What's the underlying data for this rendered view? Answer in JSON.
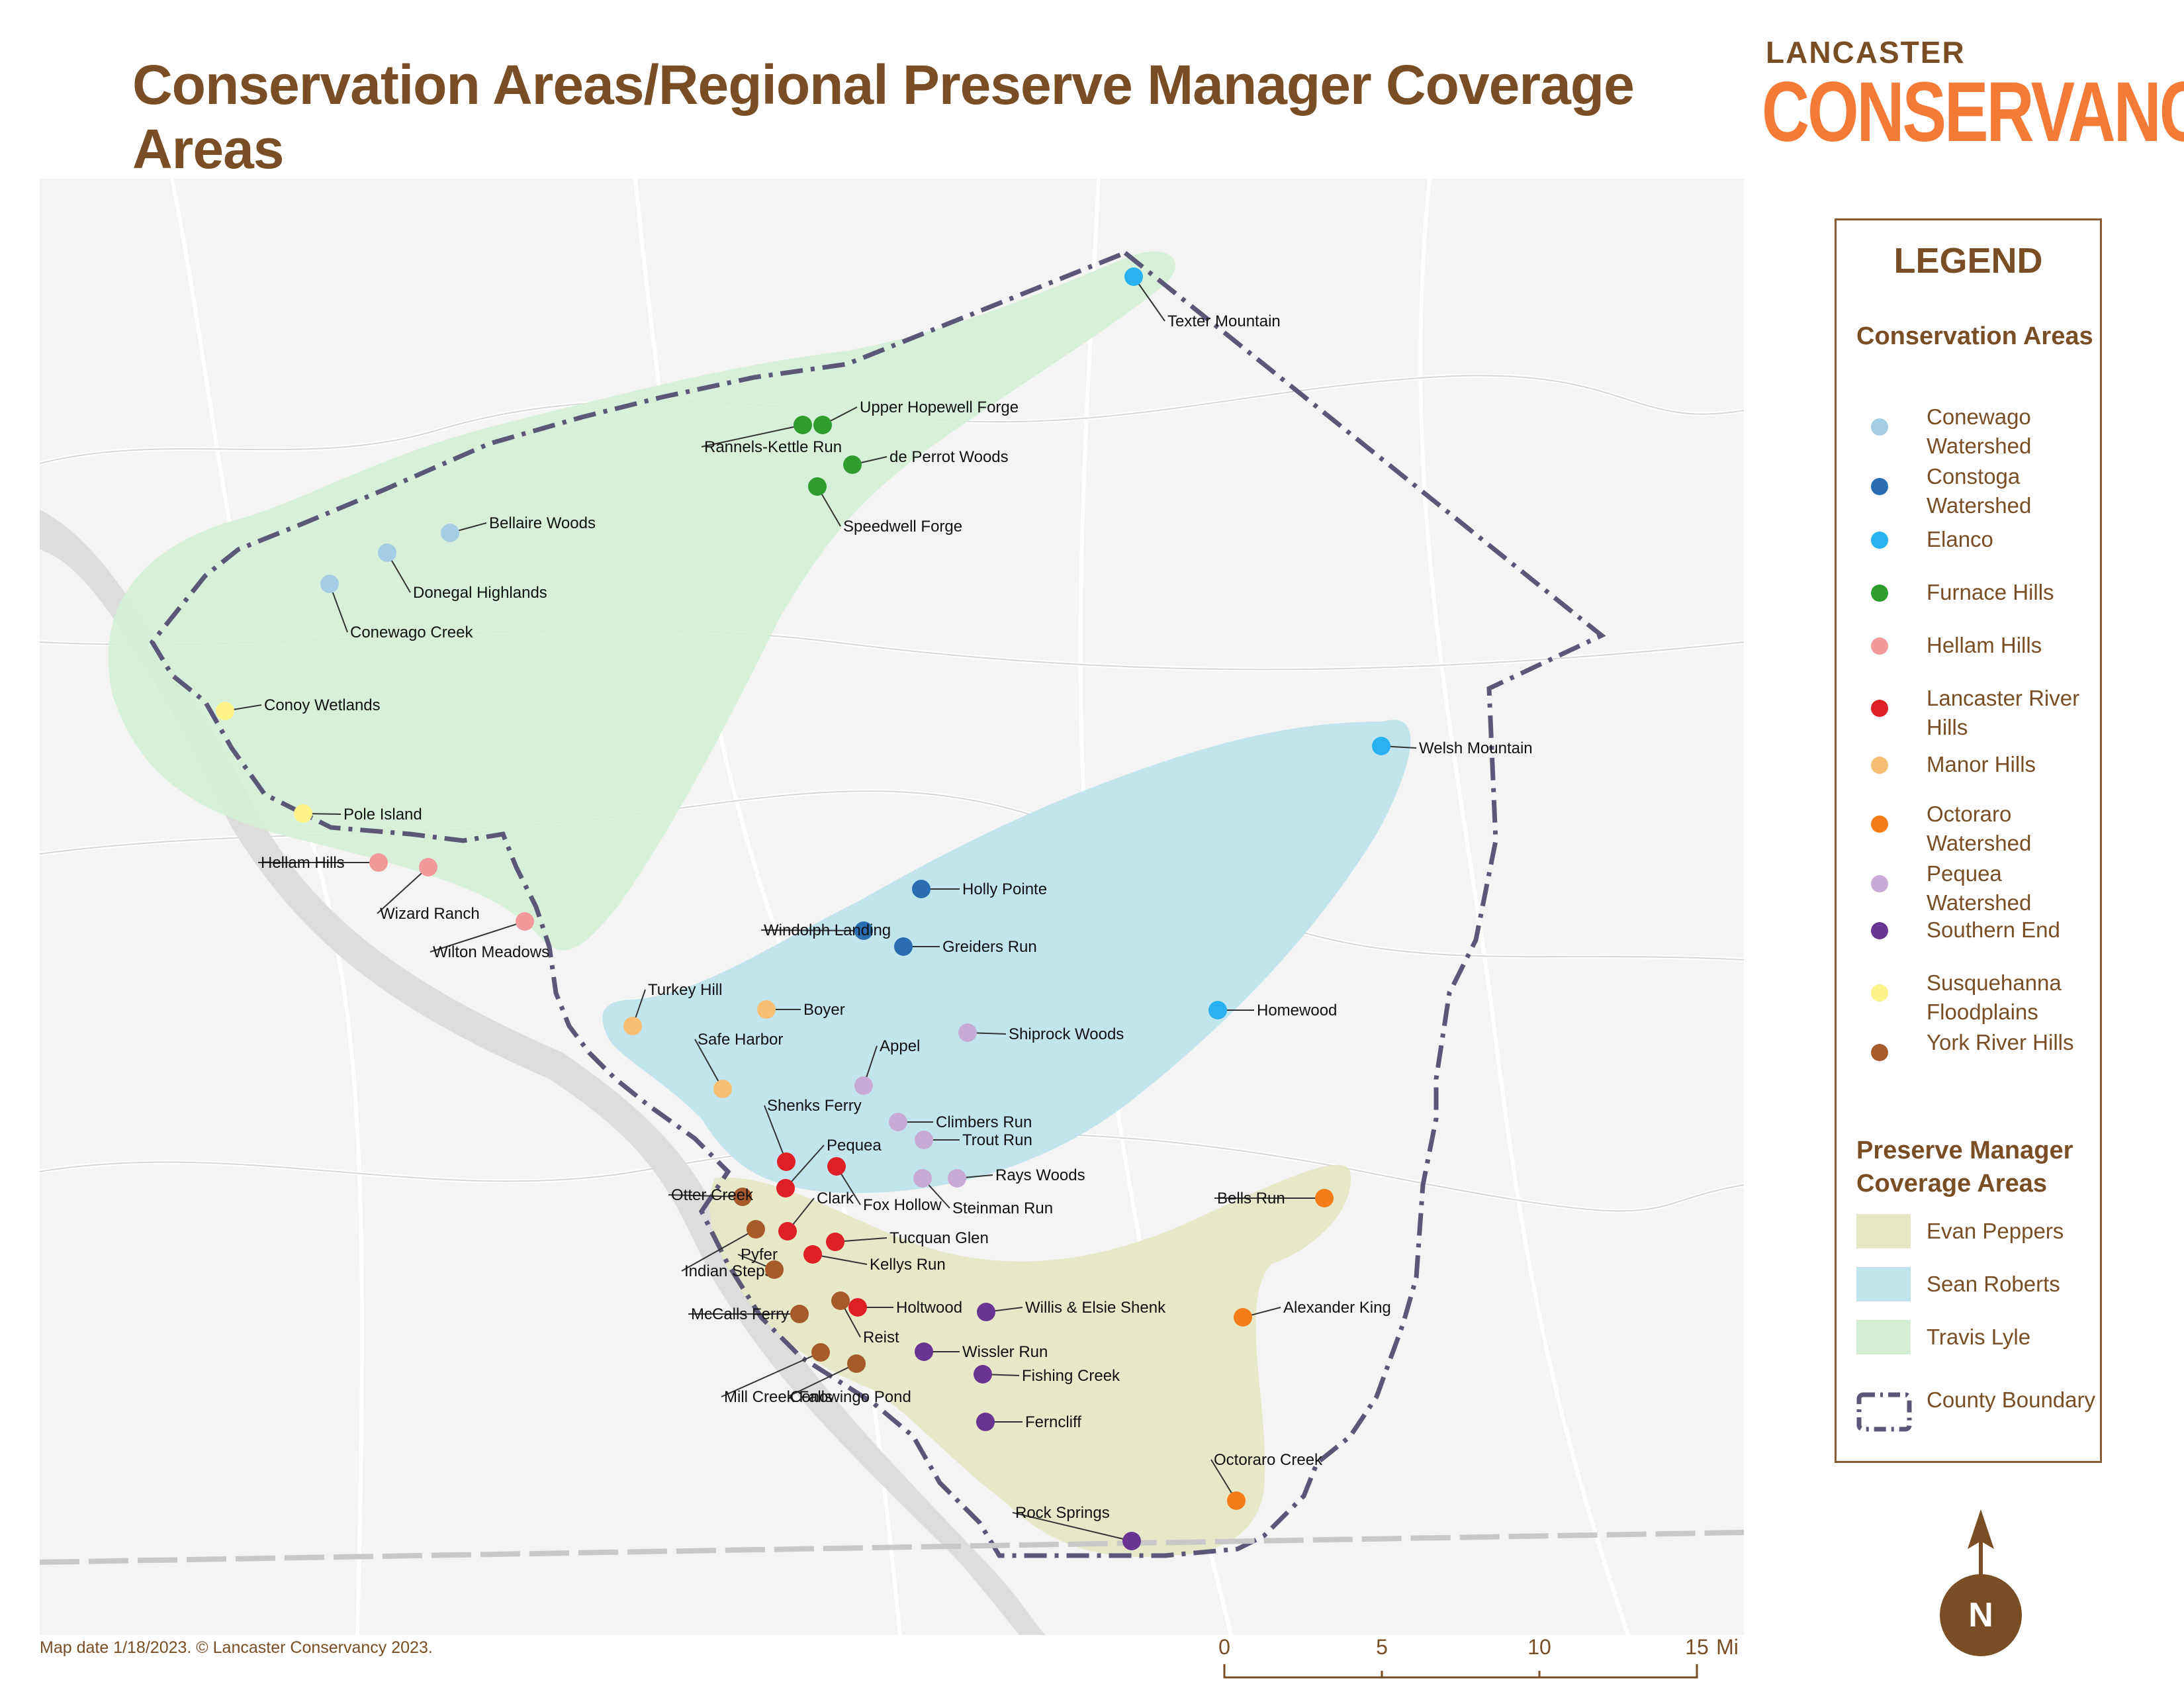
{
  "title": "Conservation Areas/Regional Preserve Manager Coverage Areas",
  "brand": {
    "top": "LANCASTER",
    "main": "CONSERVANCY"
  },
  "legend": {
    "heading": "LEGEND",
    "conservation_heading": "Conservation Areas",
    "conservation_areas": [
      {
        "label": "Conewago Watershed",
        "color": "#a6cde6"
      },
      {
        "label": "Constoga Watershed",
        "color": "#2a6db0"
      },
      {
        "label": "Elanco",
        "color": "#29b2ef"
      },
      {
        "label": "Furnace Hills",
        "color": "#2e9d2e"
      },
      {
        "label": "Hellam Hills",
        "color": "#f29a9a"
      },
      {
        "label": "Lancaster River Hills",
        "color": "#df1f26"
      },
      {
        "label": "Manor Hills",
        "color": "#f7bf73"
      },
      {
        "label": "Octoraro Watershed",
        "color": "#f47d1a"
      },
      {
        "label": "Pequea Watershed",
        "color": "#c9a9d5"
      },
      {
        "label": "Southern End",
        "color": "#6a3493"
      },
      {
        "label": "Susquehanna Floodplains",
        "color": "#fff38a"
      },
      {
        "label": "York River Hills",
        "color": "#a75a2a"
      }
    ],
    "manager_heading": "Preserve Manager Coverage Areas",
    "managers": [
      {
        "label": "Evan Peppers",
        "color": "#e6e7c4"
      },
      {
        "label": "Sean Roberts",
        "color": "#bfe4ec"
      },
      {
        "label": "Travis Lyle",
        "color": "#d4efd6"
      }
    ],
    "boundary_label": "County Boundary"
  },
  "preserves": [
    {
      "name": "Texter Mountain",
      "area": "Elanco"
    },
    {
      "name": "Upper Hopewell Forge",
      "area": "Furnace Hills"
    },
    {
      "name": "Rannels-Kettle Run",
      "area": "Furnace Hills"
    },
    {
      "name": "de Perrot Woods",
      "area": "Furnace Hills"
    },
    {
      "name": "Speedwell Forge",
      "area": "Furnace Hills"
    },
    {
      "name": "Bellaire Woods",
      "area": "Conewago Watershed"
    },
    {
      "name": "Donegal Highlands",
      "area": "Conewago Watershed"
    },
    {
      "name": "Conewago Creek",
      "area": "Conewago Watershed"
    },
    {
      "name": "Conoy Wetlands",
      "area": "Susquehanna Floodplains"
    },
    {
      "name": "Pole Island",
      "area": "Susquehanna Floodplains"
    },
    {
      "name": "Hellam Hills",
      "area": "Hellam Hills"
    },
    {
      "name": "Wizard Ranch",
      "area": "Hellam Hills"
    },
    {
      "name": "Wilton Meadows",
      "area": "Hellam Hills"
    },
    {
      "name": "Welsh Mountain",
      "area": "Elanco"
    },
    {
      "name": "Holly Pointe",
      "area": "Constoga Watershed"
    },
    {
      "name": "Windolph Landing",
      "area": "Constoga Watershed"
    },
    {
      "name": "Greiders Run",
      "area": "Constoga Watershed"
    },
    {
      "name": "Homewood",
      "area": "Elanco"
    },
    {
      "name": "Turkey Hill",
      "area": "Manor Hills"
    },
    {
      "name": "Boyer",
      "area": "Manor Hills"
    },
    {
      "name": "Safe Harbor",
      "area": "Manor Hills"
    },
    {
      "name": "Shiprock Woods",
      "area": "Pequea Watershed"
    },
    {
      "name": "Appel",
      "area": "Pequea Watershed"
    },
    {
      "name": "Climbers Run",
      "area": "Pequea Watershed"
    },
    {
      "name": "Trout Run",
      "area": "Pequea Watershed"
    },
    {
      "name": "Rays Woods",
      "area": "Pequea Watershed"
    },
    {
      "name": "Steinman Run",
      "area": "Pequea Watershed"
    },
    {
      "name": "Shenks Ferry",
      "area": "Lancaster River Hills"
    },
    {
      "name": "Pequea",
      "area": "Lancaster River Hills"
    },
    {
      "name": "Fox Hollow",
      "area": "Lancaster River Hills"
    },
    {
      "name": "Clark",
      "area": "Lancaster River Hills"
    },
    {
      "name": "Tucquan Glen",
      "area": "Lancaster River Hills"
    },
    {
      "name": "Kellys Run",
      "area": "Lancaster River Hills"
    },
    {
      "name": "Holtwood",
      "area": "Lancaster River Hills"
    },
    {
      "name": "Otter Creek",
      "area": "York River Hills"
    },
    {
      "name": "Indian Steps",
      "area": "York River Hills"
    },
    {
      "name": "Pyfer",
      "area": "York River Hills"
    },
    {
      "name": "McCalls Ferry",
      "area": "York River Hills"
    },
    {
      "name": "Reist",
      "area": "York River Hills"
    },
    {
      "name": "Mill Creek Falls",
      "area": "York River Hills"
    },
    {
      "name": "Conowingo Pond",
      "area": "York River Hills"
    },
    {
      "name": "Willis & Elsie Shenk",
      "area": "Southern End"
    },
    {
      "name": "Wissler Run",
      "area": "Southern End"
    },
    {
      "name": "Fishing Creek",
      "area": "Southern End"
    },
    {
      "name": "Ferncliff",
      "area": "Southern End"
    },
    {
      "name": "Rock Springs",
      "area": "Southern End"
    },
    {
      "name": "Bells Run",
      "area": "Octoraro Watershed"
    },
    {
      "name": "Alexander King",
      "area": "Octoraro Watershed"
    },
    {
      "name": "Octoraro Creek",
      "area": "Octoraro Watershed"
    }
  ],
  "scale": {
    "ticks": [
      "0",
      "5",
      "10",
      "15"
    ],
    "unit": "Mi"
  },
  "north": "N",
  "footer": "Map date 1/18/2023.  © Lancaster Conservancy 2023."
}
